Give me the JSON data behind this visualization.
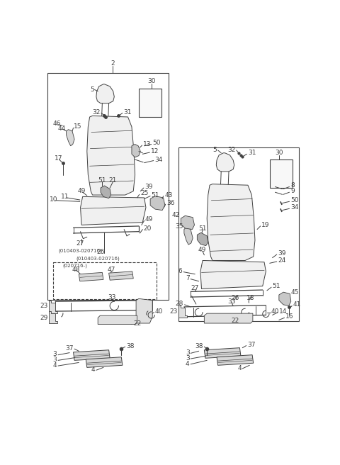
{
  "bg_color": "#ffffff",
  "line_color": "#404040",
  "fig_width": 4.8,
  "fig_height": 6.56,
  "dpi": 100
}
